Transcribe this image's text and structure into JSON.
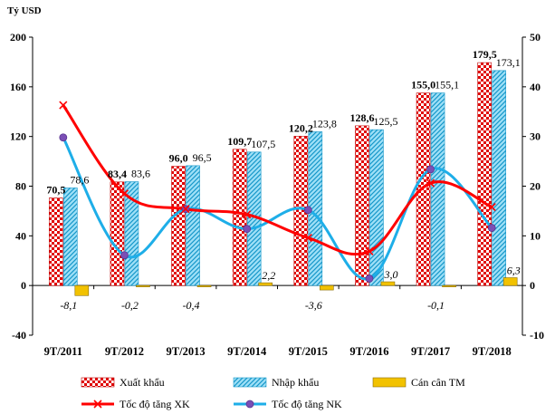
{
  "chart_data": {
    "type": "bar+line",
    "unit_label": "Tỷ USD",
    "categories": [
      "9T/2011",
      "9T/2012",
      "9T/2013",
      "9T/2014",
      "9T/2015",
      "9T/2016",
      "9T/2017",
      "9T/2018"
    ],
    "y_left": {
      "range": [
        -40,
        200
      ],
      "ticks": [
        -40,
        0,
        40,
        80,
        120,
        160,
        200
      ]
    },
    "y_right": {
      "range": [
        -10,
        50
      ],
      "ticks": [
        -10,
        0,
        10,
        20,
        30,
        40,
        50
      ]
    },
    "series": [
      {
        "name": "Xuất khẩu",
        "type": "bar",
        "axis": "left",
        "color": "#e00000",
        "values": [
          70.5,
          83.4,
          96.0,
          109.7,
          120.2,
          128.6,
          155.0,
          179.5
        ],
        "labels": [
          "70,5",
          "83,4",
          "96,0",
          "109,7",
          "120,2",
          "128,6",
          "155,0",
          "179,5"
        ]
      },
      {
        "name": "Nhập khẩu",
        "type": "bar",
        "axis": "left",
        "color": "#33b5e5",
        "values": [
          78.6,
          83.6,
          96.5,
          107.5,
          123.8,
          125.5,
          155.1,
          173.1
        ],
        "labels": [
          "78,6",
          "83,6",
          "96,5",
          "107,5",
          "123,8",
          "125,5",
          "155,1",
          "173,1"
        ]
      },
      {
        "name": "Cán cân TM",
        "type": "bar",
        "axis": "left",
        "color": "#f2c200",
        "values": [
          -8.1,
          -0.2,
          -0.4,
          2.2,
          -3.6,
          3.0,
          -0.1,
          6.3
        ],
        "labels": [
          "-8,1",
          "-0,2",
          "-0,4",
          "2,2",
          "-3,6",
          "3,0",
          "-0,1",
          "6,3"
        ]
      },
      {
        "name": "Tốc độ tăng XK",
        "type": "line",
        "axis": "right",
        "color": "#ff0000",
        "values": [
          36.3,
          18.5,
          15.4,
          14.3,
          9.6,
          6.9,
          20.6,
          15.8
        ]
      },
      {
        "name": "Tốc độ tăng NK",
        "type": "line",
        "axis": "right",
        "color": "#1eaee8",
        "values": [
          29.8,
          6.1,
          15.4,
          11.4,
          15.2,
          1.4,
          23.4,
          11.6
        ]
      }
    ]
  }
}
